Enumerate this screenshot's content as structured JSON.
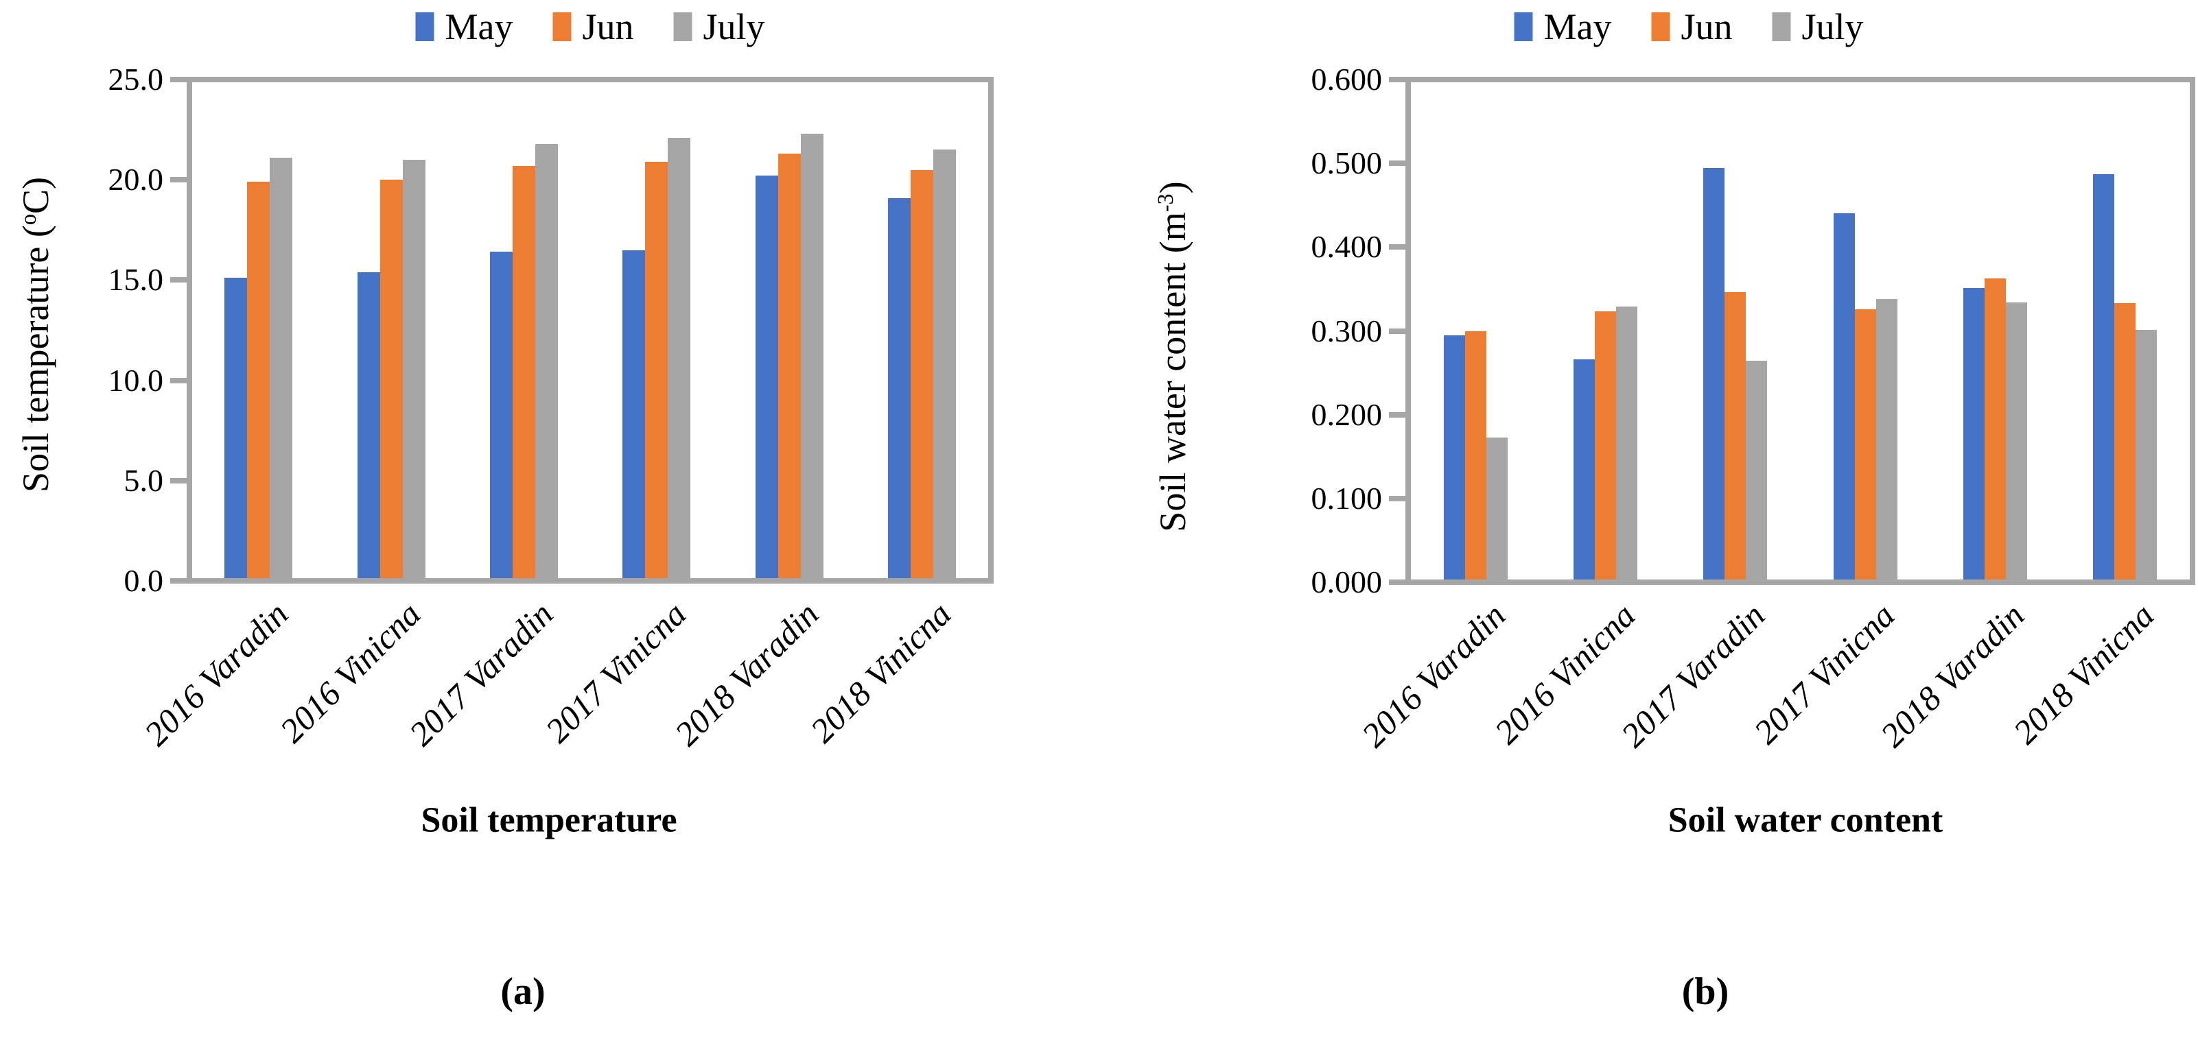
{
  "figure_title": "",
  "accent_colors": {
    "may": "#4472C4",
    "jun": "#ED7D31",
    "july": "#A5A5A5",
    "axis": "#A6A6A6"
  },
  "chart_data": [
    {
      "type": "bar",
      "panel_label": "(a)",
      "xlabel": "Soil temperature",
      "ylabel": {
        "prefix": "Soil temperature (",
        "sup": "o",
        "suffix": "C)"
      },
      "ylim": [
        0,
        25
      ],
      "ytick_step": 5,
      "ytick_labels": [
        "0.0",
        "5.0",
        "10.0",
        "15.0",
        "20.0",
        "25.0"
      ],
      "grid": false,
      "legend_position": "top",
      "categories": [
        "2016 Varadin",
        "2016 Vinicna",
        "2017 Varadin",
        "2017 Vinicna",
        "2018 Varadin",
        "2018 Vinicna"
      ],
      "series": [
        {
          "name": "May",
          "color": "#4472C4",
          "values": [
            15.1,
            15.4,
            16.4,
            16.5,
            20.2,
            19.1
          ]
        },
        {
          "name": "Jun",
          "color": "#ED7D31",
          "values": [
            19.9,
            20.0,
            20.7,
            20.9,
            21.3,
            20.5
          ]
        },
        {
          "name": "July",
          "color": "#A5A5A5",
          "values": [
            21.1,
            21.0,
            21.8,
            22.1,
            22.3,
            21.5
          ]
        }
      ]
    },
    {
      "type": "bar",
      "panel_label": "(b)",
      "xlabel": "Soil water content",
      "ylabel": {
        "prefix": "Soil water content (m",
        "sup": "-3",
        "suffix": ")"
      },
      "ylim": [
        0,
        0.6
      ],
      "ytick_step": 0.1,
      "ytick_labels": [
        "0.000",
        "0.100",
        "0.200",
        "0.300",
        "0.400",
        "0.500",
        "0.600"
      ],
      "grid": false,
      "legend_position": "top",
      "categories": [
        "2016 Varadin",
        "2016 Vinicna",
        "2017 Varadin",
        "2017 Vinicna",
        "2018 Varadin",
        "2018 Vinicna"
      ],
      "series": [
        {
          "name": "May",
          "color": "#4472C4",
          "values": [
            0.295,
            0.266,
            0.494,
            0.44,
            0.351,
            0.487
          ]
        },
        {
          "name": "Jun",
          "color": "#ED7D31",
          "values": [
            0.3,
            0.323,
            0.346,
            0.326,
            0.363,
            0.333
          ]
        },
        {
          "name": "July",
          "color": "#A5A5A5",
          "values": [
            0.173,
            0.329,
            0.264,
            0.338,
            0.334,
            0.301
          ]
        }
      ]
    }
  ]
}
